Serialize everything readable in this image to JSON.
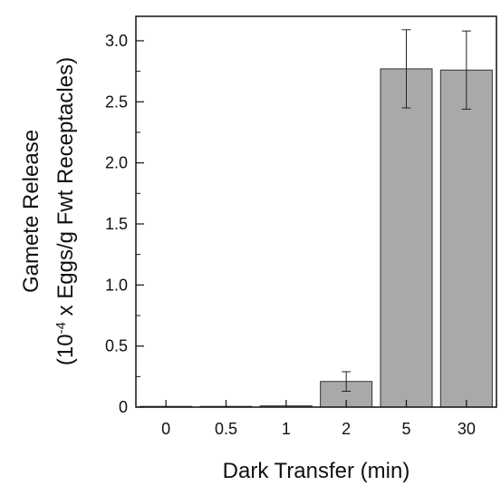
{
  "chart_data": {
    "type": "bar",
    "title": "",
    "xlabel": "Dark Transfer (min)",
    "ylabel_line1": "Gamete Release",
    "ylabel_line2_prefix": "(10",
    "ylabel_line2_exponent": "-4",
    "ylabel_line2_suffix": " x Eggs/g Fwt Receptacles)",
    "categories": [
      "0",
      "0.5",
      "1",
      "2",
      "5",
      "30"
    ],
    "values": [
      0.0,
      0.0,
      0.01,
      0.21,
      2.77,
      2.76
    ],
    "errors": [
      0.0,
      0.0,
      0.0,
      0.08,
      0.32,
      0.32
    ],
    "ylim": [
      0,
      3.2
    ],
    "yticks": [
      0,
      0.5,
      1.0,
      1.5,
      2.0,
      2.5,
      3.0
    ],
    "ytick_labels": [
      "0",
      "0.5",
      "1.0",
      "1.5",
      "2.0",
      "2.5",
      "3.0"
    ],
    "grid": false,
    "bar_color": "#a9a9a9",
    "bar_edge_color": "#333333"
  }
}
